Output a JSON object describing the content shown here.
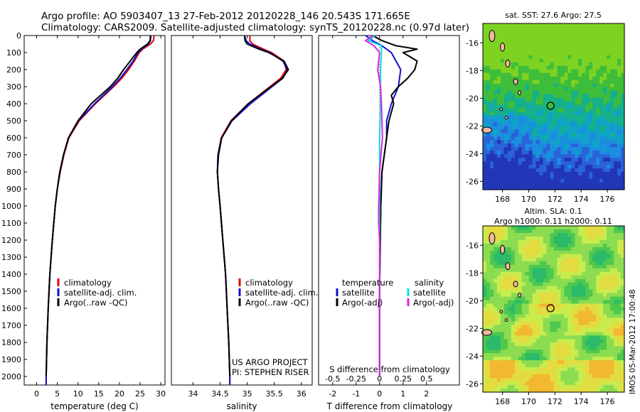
{
  "header": {
    "line1": "Argo profile: AO 5903407_13 27-Feb-2012 20120228_146 20.543S 171.665E",
    "line2": "Climatology: CARS2009. Satellite-adjusted climatology: synTS_20120228.nc (0.97d later)"
  },
  "colors": {
    "climatology": "#e00000",
    "satellite": "#1010d0",
    "argo": "#000000",
    "sat_salinity": "#00e0e0",
    "argo_salinity": "#e020e0"
  },
  "chart_data": [
    {
      "type": "line",
      "name": "temperature-profile",
      "xlabel": "temperature (deg C)",
      "ylabel": "",
      "xlim": [
        -3,
        31
      ],
      "ylim": [
        0,
        2050
      ],
      "xticks": [
        "0",
        "5",
        "10",
        "15",
        "20",
        "25",
        "30"
      ],
      "xtick_values": [
        0,
        5,
        10,
        15,
        20,
        25,
        30
      ],
      "yticks": [
        "0",
        "100",
        "200",
        "300",
        "400",
        "500",
        "600",
        "700",
        "800",
        "900",
        "1000",
        "1100",
        "1200",
        "1300",
        "1400",
        "1500",
        "1600",
        "1700",
        "1800",
        "1900",
        "2000"
      ],
      "ytick_values": [
        0,
        100,
        200,
        300,
        400,
        500,
        600,
        700,
        800,
        900,
        1000,
        1100,
        1200,
        1300,
        1400,
        1500,
        1600,
        1700,
        1800,
        1900,
        2000
      ],
      "legend": [
        "climatology",
        "satellite-adj. clim.",
        "Argo(..raw -QC)"
      ],
      "series": [
        {
          "name": "climatology",
          "depth": [
            0,
            30,
            50,
            80,
            100,
            150,
            200,
            250,
            300,
            400,
            500,
            600,
            700,
            800,
            900,
            1000,
            1200,
            1400,
            1600,
            1800,
            2000,
            2050
          ],
          "values": [
            28.4,
            28.2,
            27.5,
            25.6,
            24.8,
            23.6,
            22.2,
            20.6,
            18.6,
            14.2,
            10.3,
            7.8,
            6.6,
            5.7,
            5.0,
            4.5,
            3.8,
            3.2,
            2.8,
            2.5,
            2.3,
            2.3
          ]
        },
        {
          "name": "satellite-adj. clim.",
          "depth": [
            0,
            30,
            50,
            80,
            100,
            150,
            200,
            250,
            300,
            400,
            500,
            600,
            700,
            800,
            900,
            1000,
            1200,
            1400,
            1600,
            1800,
            2000,
            2050
          ],
          "values": [
            27.6,
            27.5,
            27.0,
            25.3,
            24.5,
            23.3,
            21.8,
            20.2,
            18.3,
            14.0,
            10.1,
            7.7,
            6.5,
            5.6,
            5.0,
            4.5,
            3.8,
            3.2,
            2.8,
            2.5,
            2.3,
            2.3
          ]
        },
        {
          "name": "Argo(..raw -QC)",
          "depth": [
            0,
            30,
            50,
            80,
            100,
            150,
            200,
            250,
            300,
            400,
            500,
            600,
            700,
            800,
            900,
            1000,
            1200,
            1400,
            1600,
            1800,
            2000
          ],
          "values": [
            27.5,
            27.4,
            26.8,
            25.0,
            24.2,
            22.6,
            21.0,
            19.6,
            17.8,
            13.2,
            10.0,
            7.7,
            6.5,
            5.6,
            5.0,
            4.5,
            3.8,
            3.2,
            2.8,
            2.5,
            2.3
          ]
        }
      ]
    },
    {
      "type": "line",
      "name": "salinity-profile",
      "xlabel": "salinity",
      "xlim": [
        33.6,
        36.2
      ],
      "ylim": [
        0,
        2050
      ],
      "xticks": [
        "34",
        "34.5",
        "35",
        "35.5",
        "36"
      ],
      "xtick_values": [
        34,
        34.5,
        35,
        35.5,
        36
      ],
      "legend": [
        "climatology",
        "satellite-adj. clim.",
        "Argo(..raw -QC)"
      ],
      "annotation": [
        "US ARGO PROJECT",
        "PI: STEPHEN RISER"
      ],
      "series": [
        {
          "name": "climatology",
          "depth": [
            0,
            30,
            50,
            80,
            100,
            150,
            200,
            250,
            300,
            400,
            500,
            600,
            700,
            800,
            900,
            1000,
            1200,
            1400,
            1600,
            1800,
            2000,
            2050
          ],
          "values": [
            35.05,
            35.05,
            35.1,
            35.3,
            35.45,
            35.68,
            35.72,
            35.62,
            35.42,
            35.02,
            34.7,
            34.52,
            34.46,
            34.45,
            34.47,
            34.5,
            34.55,
            34.6,
            34.63,
            34.66,
            34.68,
            34.68
          ]
        },
        {
          "name": "satellite-adj. clim.",
          "depth": [
            0,
            30,
            50,
            80,
            100,
            150,
            200,
            250,
            300,
            400,
            500,
            600,
            700,
            800,
            900,
            1000,
            1200,
            1400,
            1600,
            1800,
            2000,
            2050
          ],
          "values": [
            34.95,
            34.98,
            35.05,
            35.25,
            35.42,
            35.66,
            35.74,
            35.66,
            35.46,
            35.06,
            34.72,
            34.53,
            34.46,
            34.45,
            34.47,
            34.5,
            34.55,
            34.6,
            34.63,
            34.66,
            34.68,
            34.68
          ]
        },
        {
          "name": "Argo(..raw -QC)",
          "depth": [
            0,
            30,
            50,
            80,
            100,
            150,
            200,
            250,
            300,
            400,
            500,
            600,
            700,
            800,
            900,
            1000,
            1200,
            1400,
            1600,
            1800,
            2000
          ],
          "values": [
            34.95,
            34.96,
            35.0,
            35.22,
            35.4,
            35.68,
            35.76,
            35.65,
            35.44,
            35.02,
            34.71,
            34.53,
            34.47,
            34.45,
            34.47,
            34.5,
            34.55,
            34.6,
            34.63,
            34.66,
            34.68
          ]
        }
      ]
    },
    {
      "type": "line",
      "name": "difference-profile",
      "xlabel_top": "S difference from climatology",
      "xlabel": "T difference from climatology",
      "xlim": [
        -2.6,
        3.4
      ],
      "ylim": [
        0,
        2050
      ],
      "xticks": [
        "-2",
        "-1",
        "0",
        "1",
        "2"
      ],
      "xtick_values": [
        -2,
        -1,
        0,
        1,
        2
      ],
      "sticks": [
        "-0.5",
        "-0.25",
        "0",
        "0.25",
        "0.5"
      ],
      "stick_values": [
        -0.5,
        -0.25,
        0,
        0.25,
        0.5
      ],
      "legend": {
        "temperature_title": "temperature",
        "salinity_title": "salinity",
        "items": [
          "satellite",
          "Argo(-adj)",
          "satellite",
          "Argo(-adj)"
        ]
      },
      "series": [
        {
          "name": "T satellite",
          "depth": [
            0,
            30,
            60,
            100,
            200,
            300,
            400,
            500,
            600,
            700,
            800,
            1000,
            1200,
            1500,
            2000
          ],
          "values": [
            -0.6,
            -0.3,
            0.1,
            0.5,
            0.9,
            0.8,
            0.5,
            0.3,
            0.3,
            0.2,
            0.1,
            0.05,
            0.02,
            0.0,
            0.0
          ]
        },
        {
          "name": "T Argo(-adj)",
          "depth": [
            0,
            30,
            60,
            80,
            100,
            150,
            200,
            250,
            300,
            350,
            400,
            500,
            600,
            700,
            800,
            1000,
            1200,
            1500,
            2000
          ],
          "values": [
            -0.3,
            0.1,
            0.7,
            1.6,
            1.0,
            1.6,
            1.5,
            1.2,
            0.8,
            0.5,
            0.6,
            0.4,
            0.3,
            0.2,
            0.1,
            0.05,
            0.03,
            0.0,
            0.0
          ]
        },
        {
          "name": "S satellite",
          "depth": [
            0,
            30,
            60,
            100,
            200,
            400,
            600,
            1000,
            1500,
            2000
          ],
          "values": [
            -0.05,
            -0.12,
            0.02,
            0.02,
            0.01,
            0.01,
            0.0,
            0.0,
            0.0,
            0.0
          ]
        },
        {
          "name": "S Argo(-adj)",
          "depth": [
            0,
            30,
            60,
            100,
            200,
            300,
            400,
            600,
            800,
            1000,
            1100,
            1200,
            1400,
            2000
          ],
          "values": [
            -0.07,
            -0.15,
            -0.06,
            0.0,
            -0.02,
            0.01,
            0.02,
            0.03,
            0.0,
            -0.01,
            -0.01,
            0.0,
            0.0,
            0.0
          ]
        }
      ]
    }
  ],
  "maps": {
    "sst_title": "sat. SST: 27.6  Argo: 27.5",
    "sla_title1": "Altim. SLA: 0.1",
    "sla_title2": "Argo h1000: 0.11 h2000: 0.11",
    "lat_ticks": [
      "-16",
      "-18",
      "-20",
      "-22",
      "-24",
      "-26"
    ],
    "lat_values": [
      -16,
      -18,
      -20,
      -22,
      -24,
      -26
    ],
    "lon_ticks": [
      "168",
      "170",
      "172",
      "174",
      "176"
    ],
    "lon_values": [
      168,
      170,
      172,
      174,
      176
    ],
    "lon_range": [
      166.5,
      177.3
    ],
    "lat_range": [
      -26.6,
      -14.6
    ],
    "float_position": {
      "lon": 171.665,
      "lat": -20.543
    }
  },
  "footer_stamp": "IMOS 05-Mar-2012 17:00:48"
}
